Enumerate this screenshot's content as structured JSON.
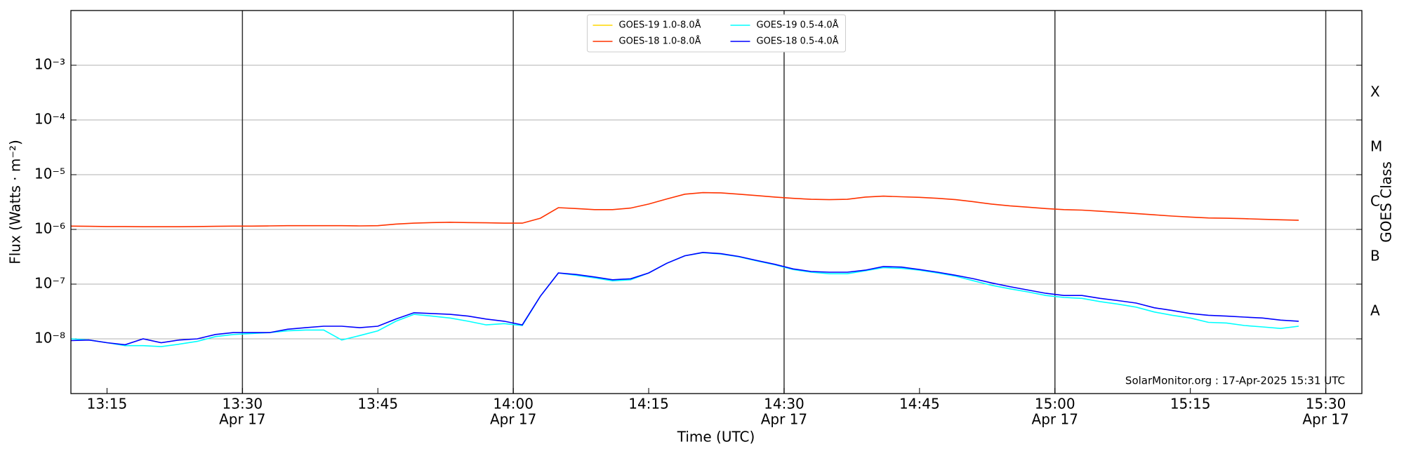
{
  "chart_data": {
    "type": "line",
    "ylabel": "Flux (Watts · m⁻²)",
    "xlabel": "Time (UTC)",
    "y2label": "GOES Class",
    "annotation": "SolarMonitor.org : 17-Apr-2025 15:31 UTC",
    "ylog": true,
    "grid": true,
    "legend": "upper center",
    "x": [
      "13:11",
      "13:13",
      "13:15",
      "13:17",
      "13:19",
      "13:21",
      "13:23",
      "13:25",
      "13:27",
      "13:29",
      "13:31",
      "13:33",
      "13:35",
      "13:37",
      "13:39",
      "13:41",
      "13:43",
      "13:45",
      "13:47",
      "13:49",
      "13:51",
      "13:53",
      "13:55",
      "13:57",
      "13:59",
      "14:01",
      "14:03",
      "14:05",
      "14:07",
      "14:09",
      "14:11",
      "14:13",
      "14:15",
      "14:17",
      "14:19",
      "14:21",
      "14:23",
      "14:25",
      "14:27",
      "14:29",
      "14:31",
      "14:33",
      "14:35",
      "14:37",
      "14:39",
      "14:41",
      "14:43",
      "14:45",
      "14:47",
      "14:49",
      "14:51",
      "14:53",
      "14:55",
      "14:57",
      "14:59",
      "15:01",
      "15:03",
      "15:05",
      "15:07",
      "15:09",
      "15:11",
      "15:13",
      "15:15",
      "15:17",
      "15:19",
      "15:21",
      "15:23",
      "15:25",
      "15:27"
    ],
    "series": [
      {
        "name": "GOES-19 1.0-8.0Å",
        "color": "#ffd700",
        "values": [
          null,
          null,
          null,
          null,
          null,
          null,
          null,
          null,
          null,
          null,
          null,
          null,
          null,
          null,
          null,
          null,
          null,
          null,
          null,
          null,
          null,
          null,
          null,
          null,
          null,
          null,
          null,
          null,
          null,
          null,
          null,
          null,
          null,
          null,
          null,
          null,
          null,
          null,
          null,
          null,
          null,
          null,
          null,
          null,
          null,
          null,
          null,
          null,
          null,
          null,
          null,
          null,
          null,
          null,
          null,
          null,
          null,
          null,
          null,
          null,
          null,
          null,
          null,
          null,
          null,
          null,
          null,
          null,
          null
        ]
      },
      {
        "name": "GOES-18 1.0-8.0Å",
        "color": "#ff3300",
        "values": [
          1.15e-06,
          1.14e-06,
          1.13e-06,
          1.13e-06,
          1.12e-06,
          1.12e-06,
          1.12e-06,
          1.13e-06,
          1.14e-06,
          1.15e-06,
          1.15e-06,
          1.16e-06,
          1.17e-06,
          1.17e-06,
          1.17e-06,
          1.17e-06,
          1.16e-06,
          1.17e-06,
          1.25e-06,
          1.3e-06,
          1.33e-06,
          1.35e-06,
          1.33e-06,
          1.32e-06,
          1.3e-06,
          1.3e-06,
          1.6e-06,
          2.5e-06,
          2.4e-06,
          2.3e-06,
          2.3e-06,
          2.45e-06,
          2.9e-06,
          3.6e-06,
          4.4e-06,
          4.7e-06,
          4.65e-06,
          4.4e-06,
          4.15e-06,
          3.9e-06,
          3.7e-06,
          3.55e-06,
          3.5e-06,
          3.55e-06,
          3.9e-06,
          4.05e-06,
          3.95e-06,
          3.85e-06,
          3.7e-06,
          3.5e-06,
          3.2e-06,
          2.9e-06,
          2.7e-06,
          2.55e-06,
          2.4e-06,
          2.3e-06,
          2.25e-06,
          2.15e-06,
          2.05e-06,
          1.95e-06,
          1.85e-06,
          1.75e-06,
          1.68e-06,
          1.62e-06,
          1.6e-06,
          1.57e-06,
          1.53e-06,
          1.5e-06,
          1.47e-06
        ]
      },
      {
        "name": "GOES-19 0.5-4.0Å",
        "color": "#00ffff",
        "values": [
          1e-08,
          9.5e-09,
          8.5e-09,
          7.5e-09,
          7.5e-09,
          7.2e-09,
          8e-09,
          9e-09,
          1.1e-08,
          1.2e-08,
          1.25e-08,
          1.3e-08,
          1.4e-08,
          1.45e-08,
          1.45e-08,
          9.5e-09,
          1.15e-08,
          1.4e-08,
          2.1e-08,
          2.8e-08,
          2.6e-08,
          2.4e-08,
          2.1e-08,
          1.8e-08,
          1.9e-08,
          1.75e-08,
          6e-08,
          1.6e-07,
          1.45e-07,
          1.3e-07,
          1.15e-07,
          1.2e-07,
          1.6e-07,
          2.4e-07,
          3.3e-07,
          3.75e-07,
          3.55e-07,
          3.15e-07,
          2.65e-07,
          2.25e-07,
          1.85e-07,
          1.65e-07,
          1.55e-07,
          1.55e-07,
          1.75e-07,
          2e-07,
          1.95e-07,
          1.8e-07,
          1.6e-07,
          1.4e-07,
          1.15e-07,
          9.5e-08,
          8.2e-08,
          7.2e-08,
          6.2e-08,
          5.7e-08,
          5.5e-08,
          4.8e-08,
          4.3e-08,
          3.8e-08,
          3.1e-08,
          2.7e-08,
          2.4e-08,
          2e-08,
          1.95e-08,
          1.75e-08,
          1.65e-08,
          1.55e-08,
          1.7e-08
        ]
      },
      {
        "name": "GOES-18 0.5-4.0Å",
        "color": "#0000ff",
        "values": [
          9.3e-09,
          9.5e-09,
          8.5e-09,
          7.8e-09,
          1e-08,
          8.5e-09,
          9.5e-09,
          1e-08,
          1.2e-08,
          1.3e-08,
          1.3e-08,
          1.3e-08,
          1.5e-08,
          1.6e-08,
          1.7e-08,
          1.7e-08,
          1.6e-08,
          1.7e-08,
          2.3e-08,
          3e-08,
          2.9e-08,
          2.8e-08,
          2.6e-08,
          2.3e-08,
          2.1e-08,
          1.8e-08,
          6e-08,
          1.6e-07,
          1.5e-07,
          1.35e-07,
          1.2e-07,
          1.25e-07,
          1.6e-07,
          2.4e-07,
          3.3e-07,
          3.8e-07,
          3.6e-07,
          3.2e-07,
          2.7e-07,
          2.3e-07,
          1.9e-07,
          1.7e-07,
          1.65e-07,
          1.65e-07,
          1.8e-07,
          2.1e-07,
          2.05e-07,
          1.85e-07,
          1.65e-07,
          1.45e-07,
          1.25e-07,
          1.05e-07,
          9e-08,
          7.8e-08,
          6.8e-08,
          6.2e-08,
          6.2e-08,
          5.5e-08,
          5e-08,
          4.5e-08,
          3.7e-08,
          3.3e-08,
          2.9e-08,
          2.7e-08,
          2.6e-08,
          2.5e-08,
          2.4e-08,
          2.2e-08,
          2.1e-08
        ]
      }
    ],
    "xlim": [
      "13:11",
      "15:34"
    ],
    "xticks": [
      "13:15",
      {
        "value": "13:30",
        "label": [
          "13:30",
          "Apr 17"
        ]
      },
      "13:45",
      {
        "value": "14:00",
        "label": [
          "14:00",
          "Apr 17"
        ]
      },
      "14:15",
      {
        "value": "14:30",
        "label": [
          "14:30",
          "Apr 17"
        ]
      },
      "14:45",
      {
        "value": "15:00",
        "label": [
          "15:00",
          "Apr 17"
        ]
      },
      "15:15",
      {
        "value": "15:30",
        "label": [
          "15:30",
          "Apr 17"
        ]
      }
    ],
    "ylim": [
      1e-09,
      0.01
    ],
    "yticks": [
      {
        "value": 1e-08,
        "label": "10⁻⁸"
      },
      {
        "value": 1e-07,
        "label": "10⁻⁷"
      },
      {
        "value": 1e-06,
        "label": "10⁻⁶"
      },
      {
        "value": 1e-05,
        "label": "10⁻⁵"
      },
      {
        "value": 0.0001,
        "label": "10⁻⁴"
      },
      {
        "value": 0.001,
        "label": "10⁻³"
      }
    ],
    "y2lim": [
      1e-09,
      0.01
    ],
    "y2ticks": [
      {
        "value": 3.16e-08,
        "label": "A"
      },
      {
        "value": 3.16e-07,
        "label": "B"
      },
      {
        "value": 3.16e-06,
        "label": "C"
      },
      {
        "value": 3.16e-05,
        "label": "M"
      },
      {
        "value": 0.000316,
        "label": "X"
      }
    ]
  }
}
